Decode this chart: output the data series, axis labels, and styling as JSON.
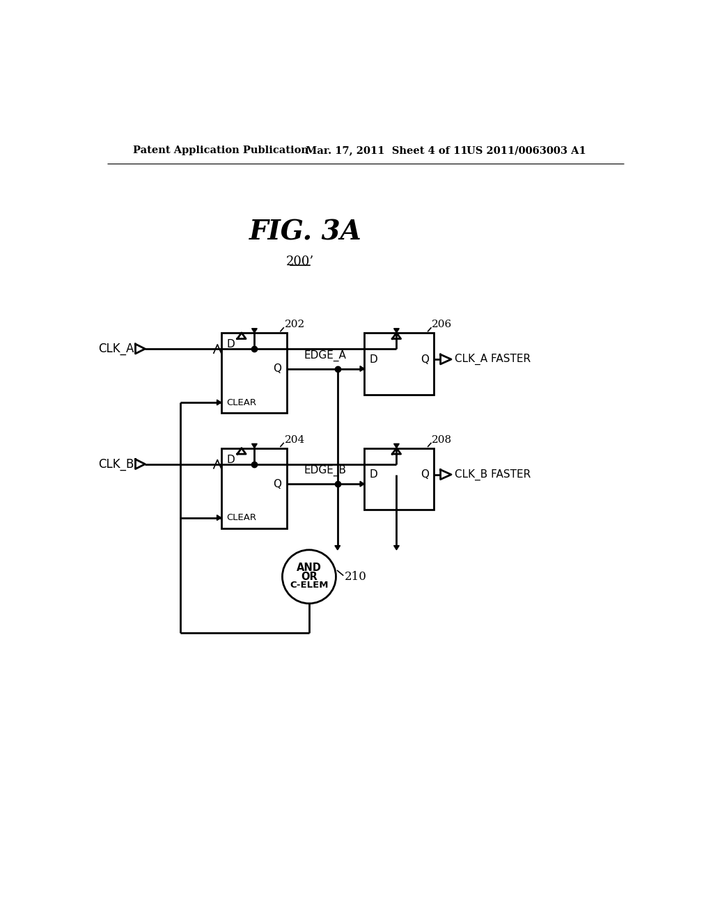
{
  "title": "FIG. 3A",
  "label_200": "200’",
  "header_left": "Patent Application Publication",
  "header_mid": "Mar. 17, 2011  Sheet 4 of 11",
  "header_right": "US 2011/0063003 A1",
  "bg_color": "#ffffff",
  "line_color": "#000000",
  "lw": 2.0,
  "thin_lw": 1.2
}
